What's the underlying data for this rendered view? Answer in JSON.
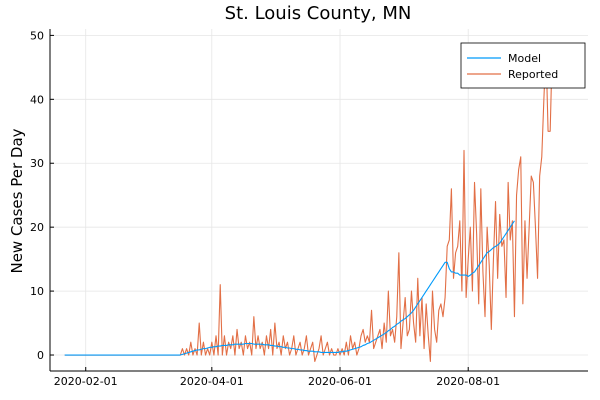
{
  "chart_data": {
    "type": "line",
    "title": "St. Louis County, MN",
    "xlabel": "",
    "ylabel": "New Cases Per Day",
    "x_start": "2020-01-22",
    "xlim": [
      "2020-01-15",
      "2020-09-27"
    ],
    "ylim": [
      -2.5,
      51
    ],
    "x_ticks": [
      "2020-02-01",
      "2020-04-01",
      "2020-06-01",
      "2020-08-01"
    ],
    "y_ticks": [
      0,
      10,
      20,
      30,
      40,
      50
    ],
    "grid": true,
    "legend_position": "top-right",
    "series": [
      {
        "name": "Model",
        "color": "#009AFA",
        "values": [
          0,
          0,
          0,
          0,
          0,
          0,
          0,
          0,
          0,
          0,
          0,
          0,
          0,
          0,
          0,
          0,
          0,
          0,
          0,
          0,
          0,
          0,
          0,
          0,
          0,
          0,
          0,
          0,
          0,
          0,
          0,
          0,
          0,
          0,
          0,
          0,
          0,
          0,
          0,
          0,
          0,
          0,
          0,
          0,
          0,
          0,
          0,
          0,
          0,
          0,
          0,
          0,
          0,
          0,
          0,
          0,
          0.1,
          0.2,
          0.3,
          0.4,
          0.5,
          0.6,
          0.7,
          0.8,
          0.8,
          0.9,
          1,
          1,
          1.1,
          1.2,
          1.2,
          1.3,
          1.3,
          1.4,
          1.4,
          1.5,
          1.5,
          1.5,
          1.6,
          1.6,
          1.6,
          1.7,
          1.7,
          1.7,
          1.7,
          1.7,
          1.8,
          1.8,
          1.8,
          1.8,
          1.7,
          1.7,
          1.7,
          1.7,
          1.7,
          1.6,
          1.6,
          1.6,
          1.5,
          1.5,
          1.4,
          1.4,
          1.3,
          1.3,
          1.2,
          1.2,
          1.1,
          1.1,
          1,
          1,
          0.9,
          0.9,
          0.8,
          0.8,
          0.7,
          0.7,
          0.6,
          0.6,
          0.6,
          0.5,
          0.5,
          0.5,
          0.4,
          0.4,
          0.4,
          0.4,
          0.4,
          0.4,
          0.4,
          0.4,
          0.4,
          0.5,
          0.5,
          0.6,
          0.6,
          0.7,
          0.8,
          0.9,
          1,
          1.1,
          1.2,
          1.3,
          1.5,
          1.6,
          1.8,
          1.9,
          2.1,
          2.3,
          2.5,
          2.7,
          2.9,
          3.1,
          3.3,
          3.5,
          3.8,
          4,
          4.3,
          4.5,
          4.8,
          5,
          5.3,
          5.5,
          5.7,
          6,
          6.3,
          6.6,
          7,
          7.5,
          8,
          8.5,
          9,
          9.5,
          10,
          10.5,
          11,
          11.5,
          12,
          12.5,
          13,
          13.5,
          14,
          14.5,
          14.5,
          13.5,
          13,
          13,
          12.8,
          12.8,
          12.5,
          12.5,
          12.5,
          12.5,
          12.3,
          12.5,
          12.8,
          13,
          13.5,
          14,
          14.5,
          15,
          15.5,
          16,
          16.2,
          16.5,
          16.8,
          17,
          17.2,
          17.5,
          18,
          18.5,
          19,
          19.5,
          20,
          20.5,
          21
        ]
      },
      {
        "name": "Reported",
        "color": "#E26F46",
        "values": [
          0,
          0,
          0,
          0,
          0,
          0,
          0,
          0,
          0,
          0,
          0,
          0,
          0,
          0,
          0,
          0,
          0,
          0,
          0,
          0,
          0,
          0,
          0,
          0,
          0,
          0,
          0,
          0,
          0,
          0,
          0,
          0,
          0,
          0,
          0,
          0,
          0,
          0,
          0,
          0,
          0,
          0,
          0,
          0,
          0,
          0,
          0,
          0,
          0,
          0,
          0,
          0,
          0,
          0,
          0,
          0,
          1,
          0,
          1,
          0,
          2,
          0,
          1,
          0,
          5,
          0,
          2,
          0,
          1,
          0,
          2,
          0,
          3,
          0,
          11,
          0,
          3,
          0,
          2,
          1,
          3,
          0,
          4,
          1,
          2,
          0,
          3,
          1,
          2,
          0,
          6,
          1,
          3,
          1,
          2,
          0,
          3,
          1,
          4,
          0,
          5,
          1,
          2,
          0,
          3,
          1,
          2,
          0,
          1,
          3,
          0,
          1,
          2,
          0,
          1,
          3,
          0,
          1,
          2,
          -1,
          0,
          1,
          3,
          0,
          1,
          2,
          0,
          1,
          0,
          0,
          1,
          0,
          1,
          0,
          2,
          0,
          3,
          1,
          2,
          0,
          1,
          3,
          4,
          2,
          3,
          2,
          7,
          1,
          2,
          3,
          4,
          1,
          5,
          2,
          10,
          3,
          4,
          2,
          6,
          16,
          1,
          5,
          9,
          3,
          4,
          10,
          5,
          2,
          12,
          3,
          9,
          1,
          8,
          3,
          -1,
          10,
          4,
          2,
          7,
          8,
          6,
          9,
          17,
          18,
          26,
          12,
          16,
          17,
          21,
          10,
          32,
          9,
          15,
          20,
          10,
          27,
          19,
          8,
          26,
          13,
          6,
          20,
          14,
          4,
          15,
          24,
          12,
          22,
          17,
          18,
          9,
          27,
          18,
          21,
          6,
          25,
          29,
          31,
          8,
          21,
          12,
          20,
          28,
          27,
          20,
          12,
          28,
          31,
          40,
          48,
          35,
          35,
          48
        ]
      }
    ]
  }
}
